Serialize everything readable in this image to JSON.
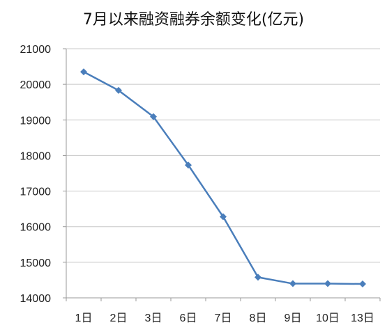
{
  "chart_data": {
    "type": "line",
    "title": "7月以来融资融券余额变化(亿元)",
    "xlabel": "",
    "ylabel": "",
    "categories": [
      "1日",
      "2日",
      "3日",
      "6日",
      "7日",
      "8日",
      "9日",
      "10日",
      "13日"
    ],
    "series": [
      {
        "values": [
          20350,
          19830,
          19090,
          17730,
          16280,
          14580,
          14400,
          14400,
          14390
        ]
      }
    ],
    "ylim": [
      14000,
      21000
    ],
    "yticks": [
      "14000",
      "15000",
      "16000",
      "17000",
      "18000",
      "19000",
      "20000",
      "21000"
    ],
    "grid": true,
    "legend": "none",
    "colors": {
      "line": "#4a7ebb",
      "marker": "#4a7ebb",
      "grid": "#c8c8c8",
      "axis": "#9a9a9a"
    }
  }
}
